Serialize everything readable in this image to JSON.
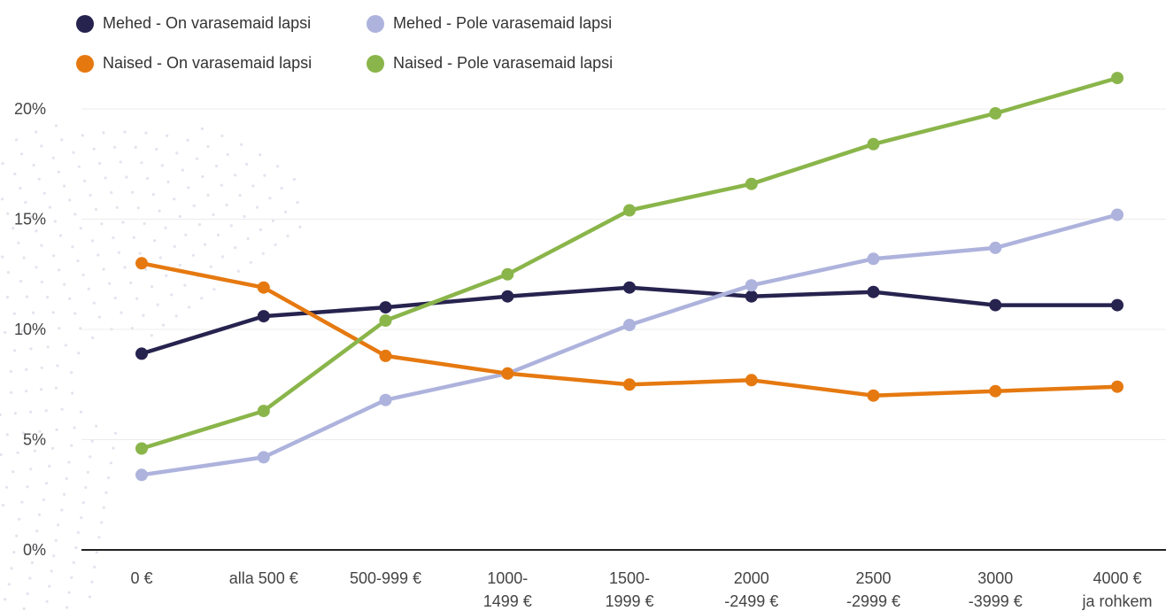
{
  "chart_data": {
    "type": "line",
    "title": "",
    "xlabel": "",
    "ylabel": "",
    "categories": [
      [
        "0 €"
      ],
      [
        "alla 500 €"
      ],
      [
        "500-999 €"
      ],
      [
        "1000-",
        "1499 €"
      ],
      [
        "1500-",
        "1999 €"
      ],
      [
        "2000",
        "-2499 €"
      ],
      [
        "2500",
        "-2999 €"
      ],
      [
        "3000",
        "-3999 €"
      ],
      [
        "4000 €",
        "ja rohkem"
      ]
    ],
    "yticks": [
      "0%",
      "5%",
      "10%",
      "15%",
      "20%"
    ],
    "ylim": [
      0,
      20
    ],
    "grid": true,
    "legend_position": "top-left",
    "series": [
      {
        "name": "Mehed - On varasemaid lapsi",
        "color": "#27234f",
        "values": [
          8.9,
          10.6,
          11.0,
          11.5,
          11.9,
          11.5,
          11.7,
          11.1,
          11.1
        ]
      },
      {
        "name": "Mehed - Pole varasemaid lapsi",
        "color": "#adb3dc",
        "values": [
          3.4,
          4.2,
          6.8,
          8.0,
          10.2,
          12.0,
          13.2,
          13.7,
          15.2
        ]
      },
      {
        "name": "Naised - On varasemaid lapsi",
        "color": "#e57910",
        "values": [
          13.0,
          11.9,
          8.8,
          8.0,
          7.5,
          7.7,
          7.0,
          7.2,
          7.4
        ]
      },
      {
        "name": "Naised - Pole varasemaid lapsi",
        "color": "#8ab54a",
        "values": [
          4.6,
          6.3,
          10.4,
          12.5,
          15.4,
          16.6,
          18.4,
          19.8,
          21.4
        ]
      }
    ]
  }
}
